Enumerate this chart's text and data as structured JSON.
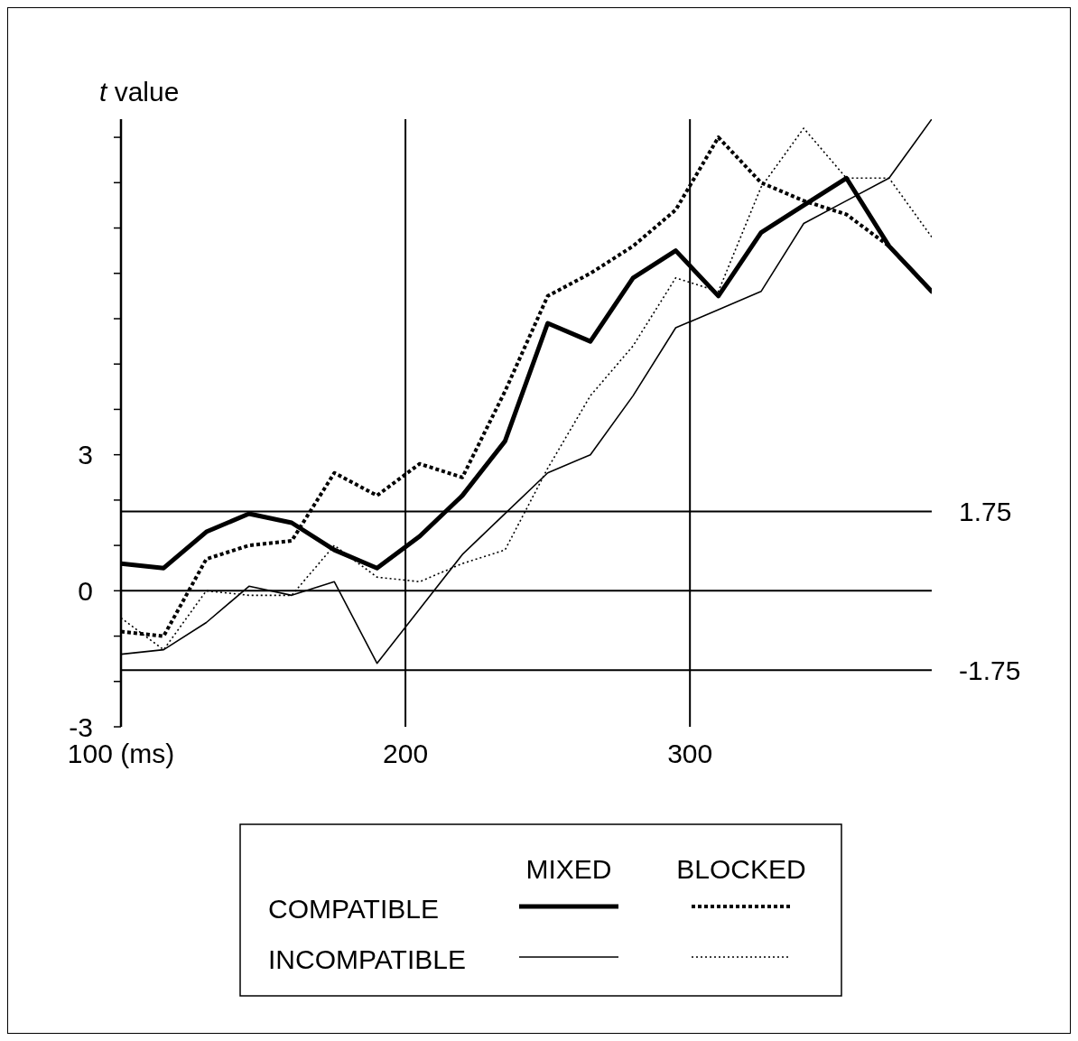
{
  "chart_data": {
    "type": "line",
    "ylabel": "t value",
    "x": [
      100,
      115,
      130,
      145,
      160,
      175,
      190,
      205,
      220,
      235,
      250,
      265,
      280,
      295,
      310,
      325,
      340,
      355,
      370,
      385
    ],
    "series": [
      {
        "color": "#000000",
        "line_style": "solid",
        "values": [
          0.6,
          0.5,
          1.3,
          1.7,
          1.5,
          0.9,
          0.5,
          1.2,
          2.1,
          3.3,
          5.9,
          5.5,
          6.9,
          7.5,
          6.5,
          7.9,
          8.5,
          9.1,
          7.6,
          6.6
        ]
      },
      {
        "color": "#000000",
        "line_style": "dotted",
        "values": [
          -0.9,
          -1.0,
          0.7,
          1.0,
          1.1,
          2.6,
          2.1,
          2.8,
          2.5,
          4.4,
          6.5,
          7.0,
          7.6,
          8.4,
          10.0,
          9.0,
          8.6,
          8.3,
          7.6,
          6.6
        ]
      },
      {
        "color": "#000000",
        "line_style": "solid",
        "values": [
          -1.4,
          -1.3,
          -0.7,
          0.1,
          -0.1,
          0.2,
          -1.6,
          -0.4,
          0.8,
          1.7,
          2.6,
          3.0,
          4.3,
          5.8,
          6.2,
          6.6,
          8.1,
          8.6,
          9.1,
          10.4
        ]
      },
      {
        "color": "#000000",
        "line_style": "dotted",
        "values": [
          -0.6,
          -1.3,
          0.0,
          -0.1,
          -0.1,
          1.0,
          0.3,
          0.2,
          0.6,
          0.9,
          2.7,
          4.3,
          5.4,
          6.9,
          6.6,
          8.9,
          10.2,
          9.1,
          9.1,
          7.8
        ]
      }
    ],
    "xlim": [
      100,
      385
    ],
    "xticks": [
      {
        "value": 100,
        "label": "100 (ms)"
      },
      200,
      300
    ],
    "ylim": [
      -3,
      10.4
    ],
    "yticks": [
      -3,
      {
        "value": -2,
        "label": null
      },
      {
        "value": -1,
        "label": null
      },
      0,
      {
        "value": 1,
        "label": null
      },
      {
        "value": 2,
        "label": null
      },
      3,
      {
        "value": 4,
        "label": null
      },
      {
        "value": 5,
        "label": null
      },
      {
        "value": 6,
        "label": null
      },
      {
        "value": 7,
        "label": null
      },
      {
        "value": 8,
        "label": null
      },
      {
        "value": 9,
        "label": null
      },
      {
        "value": 10,
        "label": null
      }
    ],
    "grid": "x",
    "legend": "bottom",
    "ref_lines": [
      {
        "axis": "y",
        "value": 1.75,
        "label": "1.75"
      },
      {
        "axis": "y",
        "value": 0
      },
      {
        "axis": "y",
        "value": -1.75,
        "label": "-1.75"
      }
    ],
    "annotations": [
      "MIXED",
      "BLOCKED",
      "COMPATIBLE",
      "INCOMPATIBLE"
    ]
  }
}
